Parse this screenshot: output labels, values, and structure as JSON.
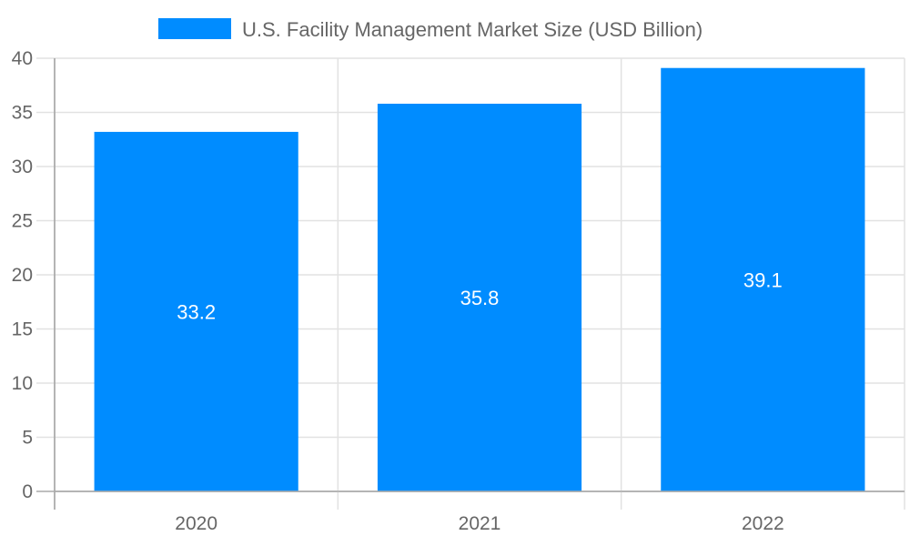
{
  "chart_data": {
    "type": "bar",
    "title": "",
    "xlabel": "",
    "ylabel": "",
    "categories": [
      "2020",
      "2021",
      "2022"
    ],
    "series": [
      {
        "name": "U.S. Facility Management Market Size (USD Billion)",
        "values": [
          33.2,
          35.8,
          39.1
        ],
        "color": "#008CFF"
      }
    ],
    "data_labels": [
      "33.2",
      "35.8",
      "39.1"
    ],
    "ylim": [
      0,
      40
    ],
    "yticks": [
      "0",
      "5",
      "10",
      "15",
      "20",
      "25",
      "30",
      "35",
      "40"
    ],
    "grid": true,
    "legend_position": "top"
  }
}
